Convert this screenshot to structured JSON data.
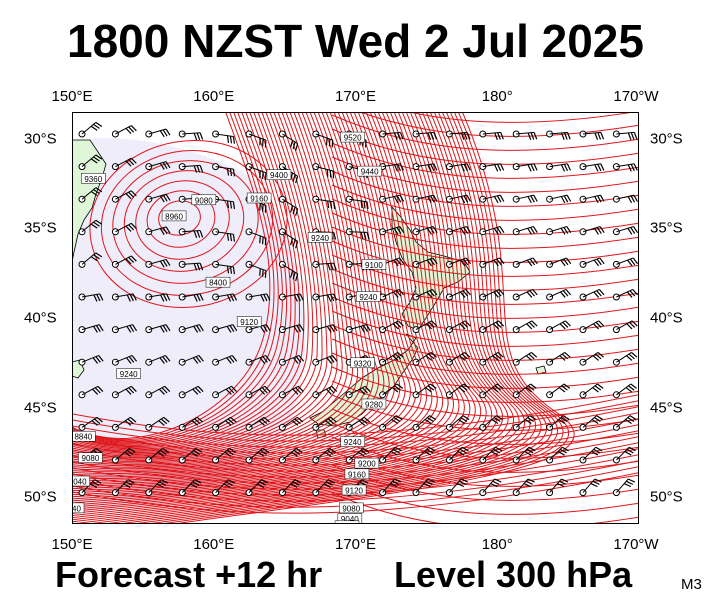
{
  "title": "1800 NZST Wed 2 Jul 2025",
  "footer": {
    "forecast": "Forecast +12 hr",
    "level": "Level 300 hPa",
    "code": "M3"
  },
  "axes": {
    "lon_ticks": [
      {
        "lon": 150,
        "label": "150°E"
      },
      {
        "lon": 160,
        "label": "160°E"
      },
      {
        "lon": 170,
        "label": "170°E"
      },
      {
        "lon": 180,
        "label": "180°"
      },
      {
        "lon": 190,
        "label": "170°W"
      }
    ],
    "lat_ticks": [
      {
        "lat": -30,
        "label": "30°S"
      },
      {
        "lat": -35,
        "label": "35°S"
      },
      {
        "lat": -40,
        "label": "40°S"
      },
      {
        "lat": -45,
        "label": "45°S"
      },
      {
        "lat": -50,
        "label": "50°S"
      }
    ],
    "lon_range": [
      150,
      190
    ],
    "lat_range": [
      -51.5,
      -28.5
    ]
  },
  "contour_labels": [
    {
      "text": "9520",
      "lon": 169.8,
      "lat": -29.9
    },
    {
      "text": "9360",
      "lon": 151.5,
      "lat": -32.2
    },
    {
      "text": "9440",
      "lon": 171.0,
      "lat": -31.8
    },
    {
      "text": "9080",
      "lon": 159.3,
      "lat": -33.4
    },
    {
      "text": "9160",
      "lon": 163.2,
      "lat": -33.3
    },
    {
      "text": "9400",
      "lon": 164.6,
      "lat": -32.0
    },
    {
      "text": "9240",
      "lon": 167.5,
      "lat": -35.5
    },
    {
      "text": "8960",
      "lon": 157.2,
      "lat": -34.3
    },
    {
      "text": "9100",
      "lon": 171.3,
      "lat": -37.0
    },
    {
      "text": "8400",
      "lon": 160.3,
      "lat": -38.0
    },
    {
      "text": "9240",
      "lon": 170.9,
      "lat": -38.8
    },
    {
      "text": "9120",
      "lon": 162.5,
      "lat": -40.2
    },
    {
      "text": "9320",
      "lon": 170.5,
      "lat": -42.5
    },
    {
      "text": "9240",
      "lon": 154.0,
      "lat": -43.1
    },
    {
      "text": "9280",
      "lon": 171.3,
      "lat": -44.8
    },
    {
      "text": "8840",
      "lon": 150.8,
      "lat": -46.6
    },
    {
      "text": "9240",
      "lon": 169.8,
      "lat": -46.9
    },
    {
      "text": "9080",
      "lon": 151.3,
      "lat": -47.8
    },
    {
      "text": "9200",
      "lon": 170.8,
      "lat": -48.1
    },
    {
      "text": "9040",
      "lon": 150.4,
      "lat": -49.1
    },
    {
      "text": "9160",
      "lon": 170.1,
      "lat": -48.7
    },
    {
      "text": "9120",
      "lon": 169.9,
      "lat": -49.6
    },
    {
      "text": "9040",
      "lon": 150.0,
      "lat": -50.6
    },
    {
      "text": "9080",
      "lon": 169.7,
      "lat": -50.6
    },
    {
      "text": "9040",
      "lon": 169.6,
      "lat": -51.2
    },
    {
      "text": "9000",
      "lon": 169.4,
      "lat": -51.6
    }
  ],
  "colors": {
    "contour": "#e0141a",
    "trough_fill": "#eeedf9",
    "land": "#dff7d8",
    "coast": "#000000",
    "barb": "#000000"
  }
}
